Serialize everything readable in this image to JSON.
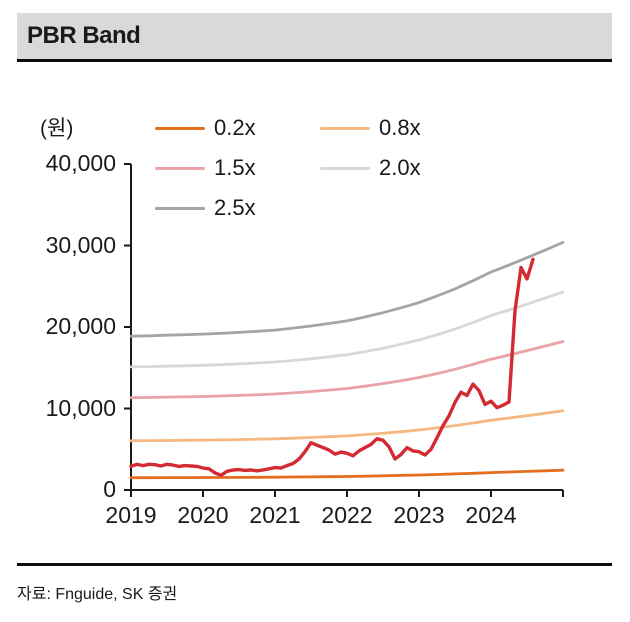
{
  "header": {
    "title": "PBR Band"
  },
  "footer": {
    "source": "자료: Fnguide, SK 증권"
  },
  "chart_data": {
    "type": "line",
    "title": "PBR Band",
    "unit_label": "(원)",
    "x_range": [
      2019,
      2025
    ],
    "x_ticks": [
      2019,
      2020,
      2021,
      2022,
      2023,
      2024
    ],
    "ylim": [
      0,
      40000
    ],
    "y_ticks": [
      0,
      10000,
      20000,
      30000,
      40000
    ],
    "grid": false,
    "legend_position": "top",
    "axis_color": "#1a1a1a",
    "legend": [
      {
        "label": "0.2x",
        "color": "#e36f1e"
      },
      {
        "label": "0.8x",
        "color": "#f4b880"
      },
      {
        "label": "1.5x",
        "color": "#e9a2a6"
      },
      {
        "label": "2.0x",
        "color": "#d8d8d8"
      },
      {
        "label": "2.5x",
        "color": "#a5a5a5"
      }
    ],
    "series": [
      {
        "name": "2.5x",
        "color": "#a5a5a5",
        "width": 2.8,
        "x_start": 2019,
        "x_step": 0.25,
        "values": [
          18875,
          18925,
          18988,
          19050,
          19125,
          19225,
          19338,
          19475,
          19625,
          19863,
          20125,
          20425,
          20750,
          21225,
          21750,
          22350,
          23000,
          23800,
          24675,
          25675,
          26750,
          27600,
          28500,
          29425,
          30375
        ]
      },
      {
        "name": "2.0x",
        "color": "#d8d8d8",
        "width": 2.8,
        "x_start": 2019,
        "x_step": 0.25,
        "values": [
          15100,
          15140,
          15190,
          15240,
          15300,
          15380,
          15470,
          15580,
          15700,
          15890,
          16100,
          16340,
          16600,
          16980,
          17400,
          17880,
          18400,
          19040,
          19740,
          20540,
          21400,
          22080,
          22800,
          23540,
          24300
        ]
      },
      {
        "name": "1.5x",
        "color": "#e9a2a6",
        "width": 2.8,
        "x_start": 2019,
        "x_step": 0.25,
        "values": [
          11325,
          11355,
          11393,
          11430,
          11475,
          11535,
          11603,
          11685,
          11775,
          11918,
          12075,
          12255,
          12450,
          12735,
          13050,
          13410,
          13800,
          14280,
          14805,
          15405,
          16050,
          16560,
          17100,
          17655,
          18225
        ]
      },
      {
        "name": "0.8x",
        "color": "#f4b880",
        "width": 2.8,
        "x_start": 2019,
        "x_step": 0.25,
        "values": [
          6040,
          6056,
          6076,
          6096,
          6120,
          6152,
          6188,
          6232,
          6280,
          6356,
          6440,
          6536,
          6640,
          6792,
          6960,
          7152,
          7360,
          7616,
          7896,
          8216,
          8560,
          8832,
          9120,
          9416,
          9720
        ]
      },
      {
        "name": "0.2x",
        "color": "#e36f1e",
        "width": 2.8,
        "x_start": 2019,
        "x_step": 0.25,
        "values": [
          1510,
          1514,
          1519,
          1524,
          1530,
          1538,
          1547,
          1558,
          1570,
          1589,
          1610,
          1634,
          1660,
          1698,
          1740,
          1788,
          1840,
          1904,
          1974,
          2054,
          2140,
          2208,
          2280,
          2354,
          2430
        ]
      },
      {
        "name": "price",
        "color": "#d22b31",
        "width": 3.4,
        "x_start": 2019,
        "x_step": 0.0833333,
        "values": [
          2900,
          3150,
          3000,
          3150,
          3100,
          2950,
          3150,
          3050,
          2900,
          3000,
          2950,
          2900,
          2700,
          2600,
          2100,
          1800,
          2300,
          2450,
          2500,
          2400,
          2450,
          2350,
          2450,
          2600,
          2750,
          2700,
          3000,
          3250,
          3800,
          4700,
          5800,
          5500,
          5200,
          4900,
          4400,
          4650,
          4500,
          4200,
          4800,
          5200,
          5600,
          6300,
          6100,
          5300,
          3800,
          4350,
          5200,
          4800,
          4700,
          4300,
          5000,
          6400,
          7900,
          9100,
          10750,
          12000,
          11600,
          13000,
          12200,
          10500,
          10900,
          10100,
          10400,
          10800,
          22000,
          27300,
          25900,
          28300
        ]
      }
    ]
  }
}
